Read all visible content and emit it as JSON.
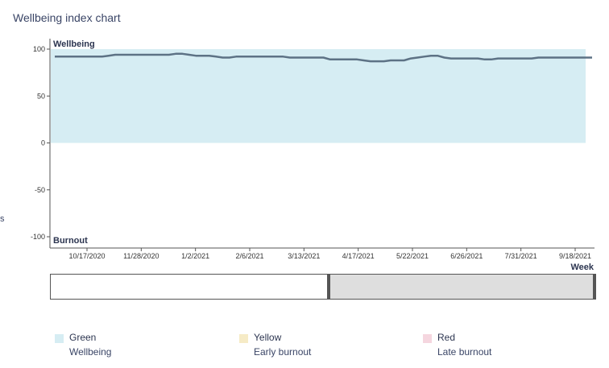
{
  "title": "Wellbeing index chart",
  "side_fragment": "s",
  "chart_data": {
    "type": "line",
    "title": "Wellbeing index chart",
    "xlabel": "Week",
    "ylabel": "",
    "top_label": "Wellbeing",
    "bottom_label": "Burnout",
    "ylim": [
      -100,
      100
    ],
    "yticks": [
      100,
      50,
      0,
      -50,
      -100
    ],
    "xticks": [
      "10/17/2020",
      "11/28/2020",
      "1/2/2021",
      "2/6/2021",
      "3/13/2021",
      "4/17/2021",
      "5/22/2021",
      "6/26/2021",
      "7/31/2021",
      "9/18/2021"
    ],
    "band": {
      "name": "Wellbeing",
      "from": 0,
      "to": 100,
      "color": "#d6edf3"
    },
    "series": [
      {
        "color": "#5d7285",
        "values": [
          92,
          92,
          92,
          92,
          92,
          92,
          92,
          92,
          93,
          94,
          94,
          94,
          94,
          94,
          94,
          94,
          94,
          94,
          95,
          95,
          94,
          93,
          93,
          93,
          92,
          91,
          91,
          92,
          92,
          92,
          92,
          92,
          92,
          92,
          92,
          91,
          91,
          91,
          91,
          91,
          91,
          89,
          89,
          89,
          89,
          89,
          88,
          87,
          87,
          87,
          88,
          88,
          88,
          90,
          91,
          92,
          93,
          93,
          91,
          90,
          90,
          90,
          90,
          90,
          89,
          89,
          90,
          90,
          90,
          90,
          90,
          90,
          91,
          91,
          91,
          91,
          91,
          91,
          91,
          91,
          91
        ]
      }
    ]
  },
  "legend": [
    {
      "name": "Green",
      "desc": "Wellbeing",
      "color": "#d6edf3"
    },
    {
      "name": "Yellow",
      "desc": "Early burnout",
      "color": "#f6ebc6"
    },
    {
      "name": "Red",
      "desc": "Late burnout",
      "color": "#f5d6df"
    }
  ],
  "brush": {
    "selected_fraction": 0.5
  }
}
